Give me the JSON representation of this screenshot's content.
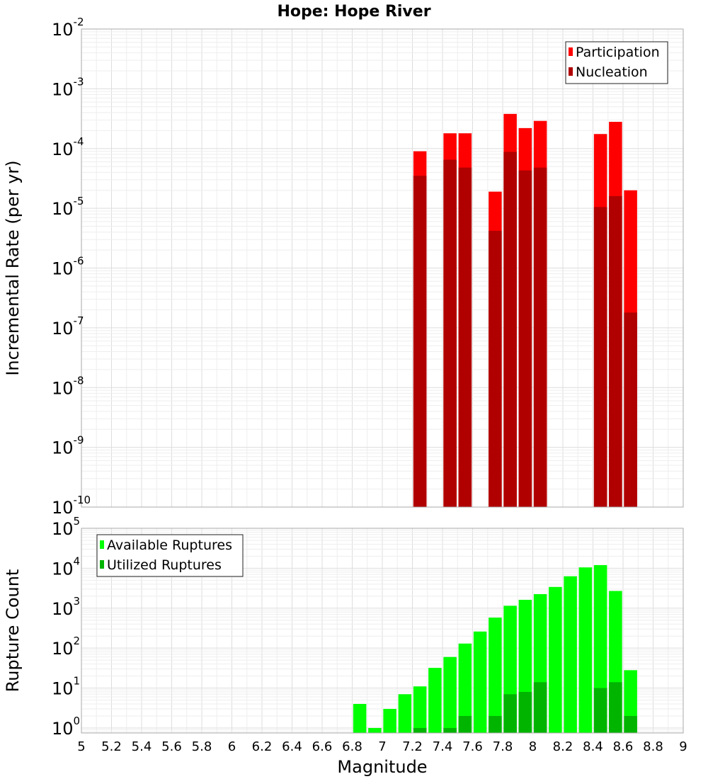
{
  "title": "Hope: Hope River",
  "colors": {
    "participation": "#ff0000",
    "nucleation": "#b00000",
    "available": "#00ff00",
    "utilized": "#00b400",
    "grid_major": "#dddddd",
    "grid_minor": "#eeeeee",
    "frame": "#aaaaaa"
  },
  "chart_data": [
    {
      "type": "bar",
      "panel": "top",
      "scale": "log",
      "ylabel": "Incremental Rate (per yr)",
      "ylim": [
        1e-10,
        0.01
      ],
      "xlim": [
        5,
        9
      ],
      "grid": true,
      "legend_position": "top-right",
      "y_ticks": [
        {
          "base": "10",
          "exp": "-10",
          "value": 1e-10
        },
        {
          "base": "10",
          "exp": "-9",
          "value": 1e-09
        },
        {
          "base": "10",
          "exp": "-8",
          "value": 1e-08
        },
        {
          "base": "10",
          "exp": "-7",
          "value": 1e-07
        },
        {
          "base": "10",
          "exp": "-6",
          "value": 1e-06
        },
        {
          "base": "10",
          "exp": "-5",
          "value": 1e-05
        },
        {
          "base": "10",
          "exp": "-4",
          "value": 0.0001
        },
        {
          "base": "10",
          "exp": "-3",
          "value": 0.001
        },
        {
          "base": "10",
          "exp": "-2",
          "value": 0.01
        }
      ],
      "x": [
        7.25,
        7.45,
        7.55,
        7.75,
        7.85,
        7.95,
        8.05,
        8.45,
        8.55,
        8.65
      ],
      "series": [
        {
          "name": "Participation",
          "values": [
            9e-05,
            0.00018,
            0.00018,
            1.9e-05,
            0.00038,
            0.00022,
            0.00029,
            0.000175,
            0.00028,
            2e-05
          ]
        },
        {
          "name": "Nucleation",
          "values": [
            3.5e-05,
            6.5e-05,
            4.8e-05,
            4.2e-06,
            8.8e-05,
            4.3e-05,
            4.8e-05,
            1.05e-05,
            1.6e-05,
            1.8e-07
          ]
        }
      ]
    },
    {
      "type": "bar",
      "panel": "bottom",
      "scale": "log",
      "xlabel": "Magnitude",
      "ylabel": "Rupture Count",
      "ylim": [
        0.75,
        100000
      ],
      "xlim": [
        5,
        9
      ],
      "grid": true,
      "legend_position": "top-left",
      "x_ticks": [
        "5",
        "5.2",
        "5.4",
        "5.6",
        "5.8",
        "6",
        "6.2",
        "6.4",
        "6.6",
        "6.8",
        "7",
        "7.2",
        "7.4",
        "7.6",
        "7.8",
        "8",
        "8.2",
        "8.4",
        "8.6",
        "8.8",
        "9"
      ],
      "y_ticks": [
        {
          "base": "10",
          "exp": "0",
          "value": 1
        },
        {
          "base": "10",
          "exp": "1",
          "value": 10
        },
        {
          "base": "10",
          "exp": "2",
          "value": 100
        },
        {
          "base": "10",
          "exp": "3",
          "value": 1000
        },
        {
          "base": "10",
          "exp": "4",
          "value": 10000
        },
        {
          "base": "10",
          "exp": "5",
          "value": 100000
        }
      ],
      "x": [
        6.85,
        6.95,
        7.05,
        7.15,
        7.25,
        7.35,
        7.45,
        7.55,
        7.65,
        7.75,
        7.85,
        7.95,
        8.05,
        8.15,
        8.25,
        8.35,
        8.45,
        8.55,
        8.65
      ],
      "series": [
        {
          "name": "Available Ruptures",
          "values": [
            4,
            1,
            3,
            7,
            11,
            32,
            60,
            130,
            260,
            580,
            1150,
            1620,
            2250,
            3400,
            6300,
            10500,
            12000,
            2700,
            28
          ]
        },
        {
          "name": "Utilized Ruptures",
          "values": [
            0,
            0,
            0,
            0,
            1,
            0,
            1,
            2,
            0,
            2,
            7,
            8,
            14,
            0,
            0,
            0,
            10,
            14,
            2
          ]
        }
      ]
    }
  ]
}
